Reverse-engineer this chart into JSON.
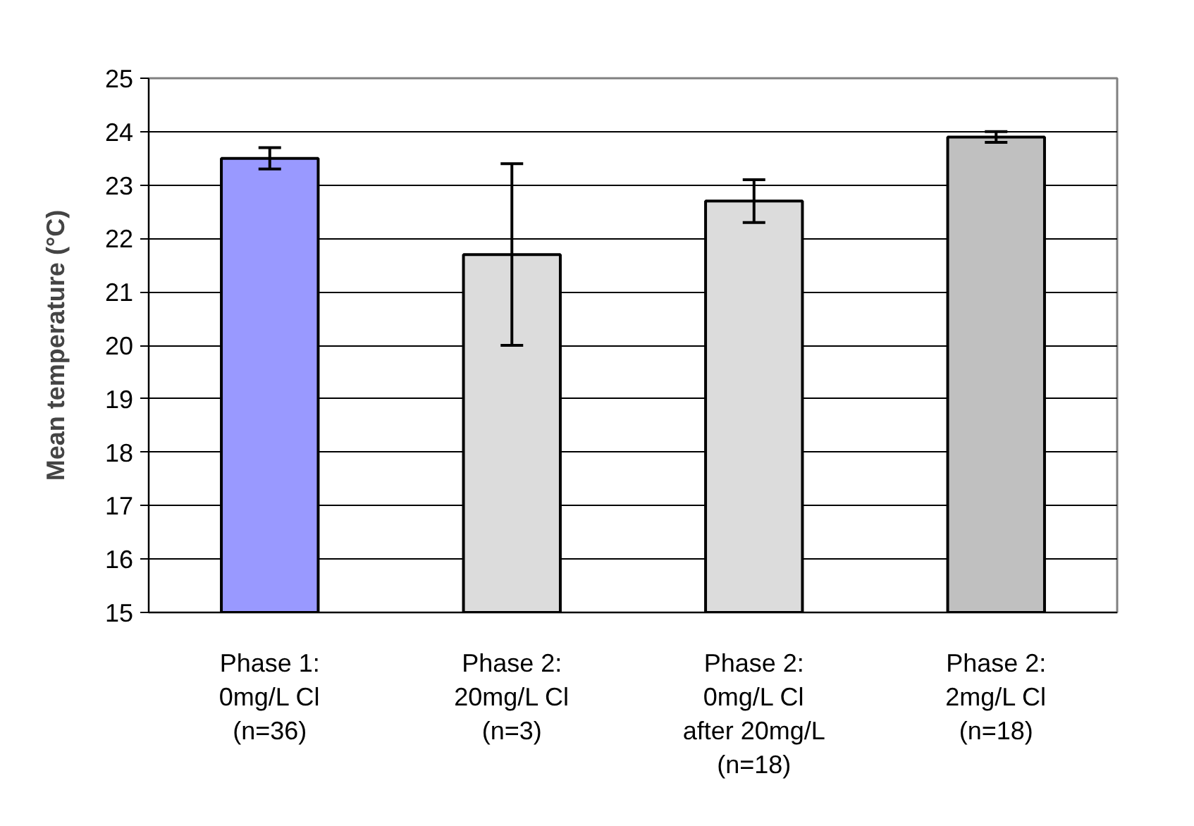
{
  "chart_data": {
    "type": "bar",
    "ylabel": "Mean temperature (°C)",
    "categories": [
      "Phase 1:\n0mg/L Cl\n(n=36)",
      "Phase 2:\n20mg/L Cl\n(n=3)",
      "Phase 2:\n0mg/L Cl\nafter 20mg/L\n(n=18)",
      "Phase 2:\n2mg/L Cl\n(n=18)"
    ],
    "values": [
      23.5,
      21.7,
      22.7,
      23.9
    ],
    "colors": [
      "#9999ff",
      "#dcdcdc",
      "#dcdcdc",
      "#c0c0c0"
    ],
    "errors": [
      0.2,
      1.7,
      0.4,
      0.1
    ],
    "ylim": [
      15,
      25
    ],
    "yticks": [
      15,
      16,
      17,
      18,
      19,
      20,
      21,
      22,
      23,
      24,
      25
    ],
    "grid": "y"
  }
}
